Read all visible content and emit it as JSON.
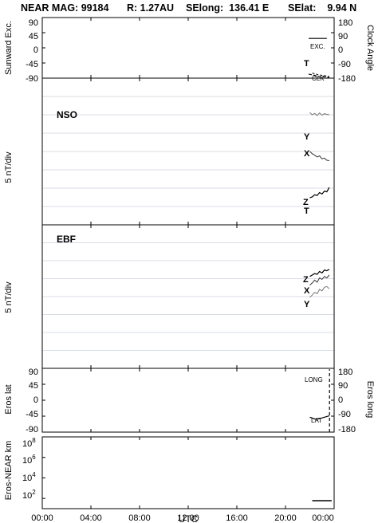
{
  "header": {
    "mission": "NEAR MAG: 99184",
    "radius": "R: 1.27AU",
    "selong": "SElong:  136.41 E",
    "selat": "SElat:    9.94 N"
  },
  "x_axis": {
    "label": "UTC",
    "ticks": [
      "00:00",
      "04:00",
      "08:00",
      "12:00",
      "16:00",
      "20:00",
      "00:00"
    ],
    "range_hours": [
      0,
      24
    ]
  },
  "panels": {
    "sunward": {
      "ylabel_left": "Sunward Exc.",
      "ylabel_right": "Clock Angle",
      "left_ticks": [
        "90",
        "45",
        "0",
        "-45",
        "-90"
      ],
      "right_ticks": [
        "180",
        "90",
        "0",
        "-90",
        "-180"
      ],
      "labels": {
        "exc": "EXC.",
        "t": "T",
        "clk": "CLK"
      }
    },
    "nso": {
      "name": "NSO",
      "ylabel": "5 nT/div",
      "labels": {
        "y": "Y",
        "x": "X",
        "z": "Z",
        "t": "T"
      }
    },
    "ebf": {
      "name": "EBF",
      "ylabel": "5 nT/div",
      "labels": {
        "z": "Z",
        "x": "X",
        "y": "Y"
      }
    },
    "eros": {
      "ylabel_left": "Eros lat",
      "ylabel_right": "Eros long",
      "left_ticks": [
        "90",
        "45",
        "0",
        "-45",
        "-90"
      ],
      "right_ticks": [
        "180",
        "90",
        "0",
        "-90",
        "-180"
      ],
      "labels": {
        "long": "LONG",
        "lat": "LAT"
      }
    },
    "range": {
      "ylabel": "Eros-NEAR km",
      "ticks": [
        {
          "base": "10",
          "exp": "8"
        },
        {
          "base": "10",
          "exp": "6"
        },
        {
          "base": "10",
          "exp": "4"
        },
        {
          "base": "10",
          "exp": "2"
        }
      ]
    }
  },
  "chart_data": [
    {
      "type": "line",
      "name": "sunward",
      "ylim": [
        -90,
        90
      ],
      "y2lim": [
        -180,
        180
      ],
      "series": [
        {
          "name": "EXC.",
          "x": [
            21.9,
            22.2,
            22.5,
            22.8,
            23.1,
            23.4
          ],
          "values": [
            28,
            28,
            28,
            28,
            28,
            28
          ]
        },
        {
          "name": "T",
          "x": [
            21.9,
            22.4,
            22.8,
            23.2,
            23.6
          ],
          "values": [
            -78,
            -82,
            -86,
            -86,
            -88
          ]
        },
        {
          "name": "CLK",
          "axis": "right",
          "x": [
            22.2,
            22.7,
            23.2,
            23.6
          ],
          "values": [
            -150,
            -160,
            -165,
            -170
          ]
        }
      ]
    },
    {
      "type": "line",
      "name": "NSO",
      "units": "nT",
      "ylim": [
        -20,
        20
      ],
      "grid_step": 5,
      "series": [
        {
          "name": "Y",
          "x": [
            22.0,
            22.2,
            22.4,
            22.6,
            22.8,
            23.0,
            23.2,
            23.4,
            23.6
          ],
          "values": [
            10.6,
            10.0,
            10.4,
            9.8,
            10.5,
            9.9,
            10.3,
            10.1,
            10.0
          ]
        },
        {
          "name": "X",
          "x": [
            22.0,
            22.2,
            22.4,
            22.6,
            22.8,
            23.0,
            23.2,
            23.4,
            23.6
          ],
          "values": [
            0.0,
            -0.6,
            -1.0,
            -1.5,
            -1.2,
            -2.0,
            -1.8,
            -2.4,
            -2.5
          ]
        },
        {
          "name": "Z",
          "x": [
            22.0,
            22.2,
            22.4,
            22.6,
            22.8,
            23.0,
            23.2,
            23.4,
            23.6
          ],
          "values": [
            -12.6,
            -12.4,
            -11.8,
            -12.0,
            -11.2,
            -11.6,
            -10.8,
            -11.0,
            -9.8
          ]
        }
      ]
    },
    {
      "type": "line",
      "name": "EBF",
      "units": "nT",
      "ylim": [
        -20,
        20
      ],
      "grid_step": 5,
      "series": [
        {
          "name": "Z",
          "x": [
            22.0,
            22.2,
            22.4,
            22.6,
            22.8,
            23.0,
            23.2,
            23.4,
            23.6
          ],
          "values": [
            5.6,
            6.0,
            6.4,
            6.2,
            7.0,
            6.6,
            7.4,
            7.2,
            7.6
          ]
        },
        {
          "name": "X",
          "x": [
            22.0,
            22.2,
            22.4,
            22.6,
            22.8,
            23.0,
            23.2,
            23.4,
            23.6
          ],
          "values": [
            3.2,
            3.8,
            4.6,
            4.0,
            5.2,
            4.8,
            5.6,
            5.2,
            6.0
          ]
        },
        {
          "name": "Y",
          "x": [
            22.0,
            22.2,
            22.4,
            22.6,
            22.8,
            23.0,
            23.2,
            23.4,
            23.6
          ],
          "values": [
            -0.2,
            0.4,
            1.2,
            0.8,
            2.0,
            1.6,
            2.6,
            2.8,
            2.2
          ]
        }
      ]
    },
    {
      "type": "line",
      "name": "eros",
      "ylim": [
        -90,
        90
      ],
      "y2lim": [
        -180,
        180
      ],
      "series": [
        {
          "name": "LONG",
          "axis": "right",
          "x": [
            23.62,
            23.62
          ],
          "values": [
            -180,
            175
          ]
        },
        {
          "name": "LAT",
          "x": [
            22.0,
            22.5,
            23.0,
            23.6
          ],
          "values": [
            -48,
            -54,
            -50,
            -44
          ]
        }
      ]
    },
    {
      "type": "line",
      "name": "range",
      "yscale": "log",
      "ylim": [
        10,
        100000000
      ],
      "series": [
        {
          "name": "range",
          "x": [
            22.2,
            23.8
          ],
          "values": [
            60,
            60
          ]
        }
      ]
    }
  ]
}
